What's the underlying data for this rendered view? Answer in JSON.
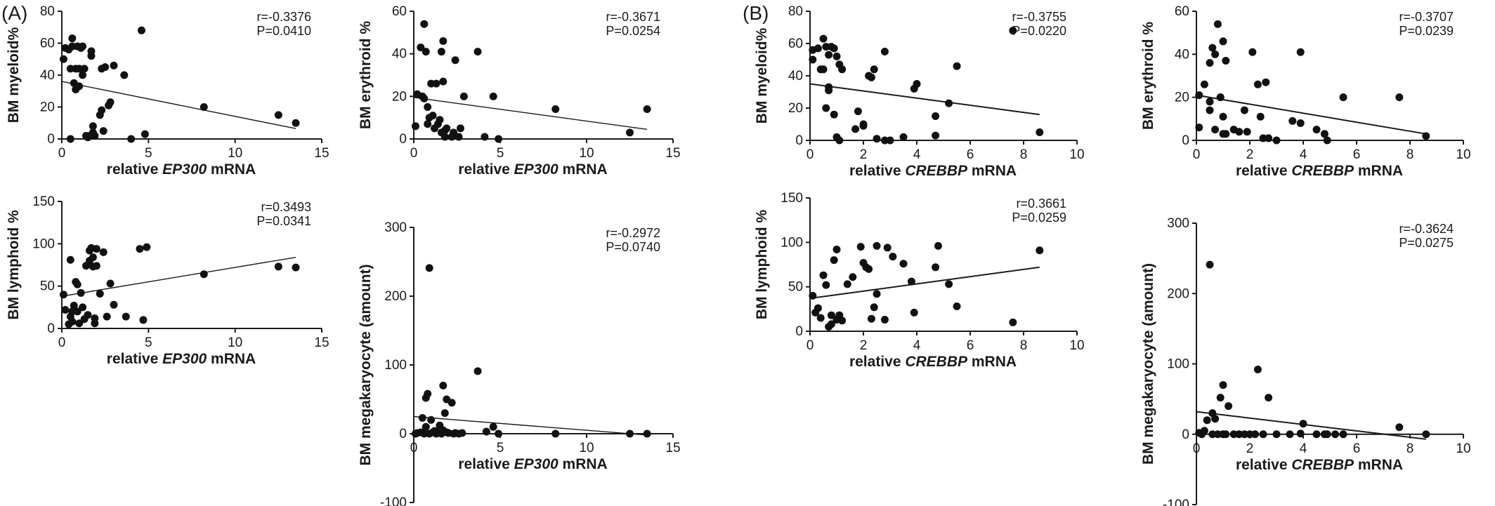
{
  "panel_labels": [
    "(A)",
    "(B)"
  ],
  "chart_data": [
    {
      "type": "scatter",
      "panel": "(A)",
      "ylabel": "BM myeloid%",
      "xlabel_prefix": "relative ",
      "xlabel_gene": "EP300",
      "xlabel_suffix": " mRNA",
      "xlim": [
        0,
        15
      ],
      "xticks": [
        0,
        5,
        10,
        15
      ],
      "ylim": [
        0,
        80
      ],
      "yticks": [
        0,
        20,
        40,
        60,
        80
      ],
      "r": "r=-0.3376",
      "p": "P=0.0410",
      "regression": {
        "x": [
          0,
          13.5
        ],
        "y": [
          36,
          6.5
        ]
      },
      "points": [
        [
          0.1,
          50
        ],
        [
          0.2,
          57
        ],
        [
          0.4,
          56
        ],
        [
          0.5,
          44
        ],
        [
          0.6,
          58
        ],
        [
          0.6,
          63
        ],
        [
          0.7,
          35
        ],
        [
          0.8,
          44
        ],
        [
          0.8,
          31
        ],
        [
          0.9,
          58
        ],
        [
          1.0,
          33
        ],
        [
          1.0,
          44
        ],
        [
          1.1,
          57
        ],
        [
          1.2,
          40
        ],
        [
          1.2,
          58
        ],
        [
          1.3,
          44
        ],
        [
          1.4,
          2
        ],
        [
          1.5,
          1
        ],
        [
          1.6,
          2
        ],
        [
          1.7,
          55
        ],
        [
          1.7,
          52
        ],
        [
          1.8,
          8
        ],
        [
          1.8,
          4
        ],
        [
          1.9,
          2
        ],
        [
          2.2,
          15
        ],
        [
          2.3,
          18
        ],
        [
          2.3,
          44
        ],
        [
          2.4,
          5
        ],
        [
          2.5,
          45
        ],
        [
          2.7,
          21
        ],
        [
          2.8,
          23
        ],
        [
          3.0,
          46
        ],
        [
          3.6,
          40
        ],
        [
          4.0,
          0
        ],
        [
          4.6,
          68
        ],
        [
          4.8,
          3
        ],
        [
          8.2,
          20
        ],
        [
          12.5,
          15
        ],
        [
          13.5,
          10
        ],
        [
          0.5,
          0
        ]
      ]
    },
    {
      "type": "scatter",
      "panel": "(A)",
      "ylabel": "BM erythroid %",
      "xlabel_prefix": "relative ",
      "xlabel_gene": "EP300",
      "xlabel_suffix": " mRNA",
      "xlim": [
        0,
        15
      ],
      "xticks": [
        0,
        5,
        10,
        15
      ],
      "ylim": [
        0,
        60
      ],
      "yticks": [
        0,
        20,
        40,
        60
      ],
      "r": "r=-0.3671",
      "p": "P=0.0254",
      "regression": {
        "x": [
          0,
          13.5
        ],
        "y": [
          19.5,
          4.5
        ]
      },
      "points": [
        [
          0.1,
          6
        ],
        [
          0.2,
          21
        ],
        [
          0.4,
          43
        ],
        [
          0.5,
          20
        ],
        [
          0.6,
          19
        ],
        [
          0.6,
          54
        ],
        [
          0.7,
          41
        ],
        [
          0.8,
          7
        ],
        [
          0.8,
          15
        ],
        [
          0.9,
          10
        ],
        [
          1.0,
          26
        ],
        [
          1.1,
          11
        ],
        [
          1.2,
          5
        ],
        [
          1.3,
          26
        ],
        [
          1.4,
          7
        ],
        [
          1.5,
          9
        ],
        [
          1.6,
          3
        ],
        [
          1.6,
          41
        ],
        [
          1.7,
          46
        ],
        [
          1.7,
          27
        ],
        [
          1.8,
          4
        ],
        [
          1.9,
          5
        ],
        [
          2.2,
          1
        ],
        [
          2.3,
          3
        ],
        [
          2.4,
          37
        ],
        [
          2.6,
          1
        ],
        [
          2.7,
          5
        ],
        [
          2.9,
          20
        ],
        [
          3.7,
          41
        ],
        [
          4.1,
          1
        ],
        [
          4.6,
          20
        ],
        [
          4.9,
          0
        ],
        [
          8.2,
          14
        ],
        [
          12.5,
          3
        ],
        [
          13.5,
          14
        ],
        [
          1.8,
          1
        ]
      ]
    },
    {
      "type": "scatter",
      "panel": "(B)",
      "ylabel": "BM myeloid%",
      "xlabel_prefix": "relative ",
      "xlabel_gene": "CREBBP",
      "xlabel_suffix": " mRNA",
      "xlim": [
        0,
        10
      ],
      "xticks": [
        0,
        2,
        4,
        6,
        8,
        10
      ],
      "ylim": [
        0,
        80
      ],
      "yticks": [
        0,
        20,
        40,
        60,
        80
      ],
      "r": "r=-0.3755",
      "p": "P=0.0220",
      "regression": {
        "x": [
          0,
          8.6
        ],
        "y": [
          35,
          16
        ]
      },
      "points": [
        [
          0.1,
          50
        ],
        [
          0.1,
          56
        ],
        [
          0.3,
          57
        ],
        [
          0.4,
          44
        ],
        [
          0.5,
          63
        ],
        [
          0.5,
          44
        ],
        [
          0.6,
          58
        ],
        [
          0.6,
          20
        ],
        [
          0.7,
          53
        ],
        [
          0.7,
          33
        ],
        [
          0.7,
          31
        ],
        [
          0.8,
          58
        ],
        [
          0.9,
          16
        ],
        [
          0.9,
          57
        ],
        [
          1.0,
          52
        ],
        [
          1.0,
          2
        ],
        [
          1.1,
          47
        ],
        [
          1.1,
          0
        ],
        [
          1.2,
          44
        ],
        [
          1.7,
          7
        ],
        [
          1.8,
          18
        ],
        [
          2.0,
          9
        ],
        [
          2.0,
          10
        ],
        [
          2.2,
          40
        ],
        [
          2.3,
          39
        ],
        [
          2.4,
          44
        ],
        [
          2.5,
          1
        ],
        [
          2.8,
          0
        ],
        [
          2.8,
          55
        ],
        [
          3.0,
          0
        ],
        [
          3.5,
          2
        ],
        [
          3.9,
          32
        ],
        [
          4.0,
          35
        ],
        [
          4.7,
          3
        ],
        [
          4.7,
          15
        ],
        [
          5.2,
          23
        ],
        [
          5.5,
          46
        ],
        [
          7.6,
          68
        ],
        [
          8.6,
          5
        ]
      ]
    },
    {
      "type": "scatter",
      "panel": "(B)",
      "ylabel": "BM erythroid %",
      "xlabel_prefix": "relative ",
      "xlabel_gene": "CREBBP",
      "xlabel_suffix": " mRNA",
      "xlim": [
        0,
        10
      ],
      "xticks": [
        0,
        2,
        4,
        6,
        8,
        10
      ],
      "ylim": [
        0,
        60
      ],
      "yticks": [
        0,
        20,
        40,
        60
      ],
      "r": "r=-0.3707",
      "p": "P=0.0239",
      "regression": {
        "x": [
          0,
          8.6
        ],
        "y": [
          21,
          3
        ]
      },
      "points": [
        [
          0.1,
          21
        ],
        [
          0.1,
          6
        ],
        [
          0.3,
          26
        ],
        [
          0.5,
          18
        ],
        [
          0.5,
          36
        ],
        [
          0.5,
          14
        ],
        [
          0.6,
          43
        ],
        [
          0.7,
          40
        ],
        [
          0.7,
          5
        ],
        [
          0.8,
          54
        ],
        [
          0.9,
          20
        ],
        [
          0.9,
          20
        ],
        [
          1.0,
          46
        ],
        [
          1.0,
          3
        ],
        [
          1.0,
          11
        ],
        [
          1.1,
          37
        ],
        [
          1.1,
          3
        ],
        [
          1.4,
          5
        ],
        [
          1.6,
          4
        ],
        [
          1.8,
          14
        ],
        [
          1.9,
          4
        ],
        [
          2.1,
          41
        ],
        [
          2.3,
          26
        ],
        [
          2.4,
          11
        ],
        [
          2.5,
          1
        ],
        [
          2.6,
          27
        ],
        [
          2.7,
          1
        ],
        [
          3.0,
          0
        ],
        [
          3.6,
          9
        ],
        [
          3.9,
          41
        ],
        [
          3.9,
          8
        ],
        [
          4.5,
          5
        ],
        [
          4.8,
          3
        ],
        [
          4.9,
          0
        ],
        [
          5.5,
          20
        ],
        [
          7.6,
          20
        ],
        [
          8.6,
          2
        ]
      ]
    },
    {
      "type": "scatter",
      "panel": "(A)",
      "ylabel": "BM lymphoid %",
      "xlabel_prefix": "relative ",
      "xlabel_gene": "EP300",
      "xlabel_suffix": " mRNA",
      "xlim": [
        0,
        15
      ],
      "xticks": [
        0,
        5,
        10,
        15
      ],
      "ylim": [
        0,
        150
      ],
      "yticks": [
        0,
        50,
        100,
        150
      ],
      "r": "r=0.3493",
      "p": "P=0.0341",
      "regression": {
        "x": [
          0,
          13.5
        ],
        "y": [
          38,
          84
        ]
      },
      "points": [
        [
          0.1,
          40
        ],
        [
          0.2,
          22
        ],
        [
          0.4,
          5
        ],
        [
          0.5,
          14
        ],
        [
          0.5,
          81
        ],
        [
          0.6,
          8
        ],
        [
          0.6,
          20
        ],
        [
          0.7,
          27
        ],
        [
          0.8,
          55
        ],
        [
          0.9,
          52
        ],
        [
          0.9,
          20
        ],
        [
          1.0,
          6
        ],
        [
          1.1,
          42
        ],
        [
          1.2,
          25
        ],
        [
          1.3,
          11
        ],
        [
          1.4,
          74
        ],
        [
          1.5,
          16
        ],
        [
          1.6,
          80
        ],
        [
          1.6,
          92
        ],
        [
          1.7,
          95
        ],
        [
          1.8,
          84
        ],
        [
          1.8,
          73
        ],
        [
          1.9,
          6
        ],
        [
          1.9,
          12
        ],
        [
          2.0,
          94
        ],
        [
          2.0,
          74
        ],
        [
          2.2,
          41
        ],
        [
          2.4,
          90
        ],
        [
          2.6,
          14
        ],
        [
          2.8,
          53
        ],
        [
          3.0,
          28
        ],
        [
          3.7,
          14
        ],
        [
          4.5,
          94
        ],
        [
          4.7,
          10
        ],
        [
          4.9,
          96
        ],
        [
          8.2,
          64
        ],
        [
          12.5,
          73
        ],
        [
          13.5,
          72
        ]
      ]
    },
    {
      "type": "scatter",
      "panel": "(A)",
      "ylabel": "BM megakaryocyte (amount)",
      "xlabel_prefix": "relative ",
      "xlabel_gene": "EP300",
      "xlabel_suffix": " mRNA",
      "xlim": [
        0,
        15
      ],
      "xticks": [
        0,
        5,
        10,
        15
      ],
      "ylim": [
        -100,
        300
      ],
      "yticks": [
        -100,
        0,
        100,
        200,
        300
      ],
      "r": "r=-0.2972",
      "p": "P=0.0740",
      "regression": {
        "x": [
          0,
          13.5
        ],
        "y": [
          25,
          -2
        ]
      },
      "points": [
        [
          0.1,
          0
        ],
        [
          0.2,
          1
        ],
        [
          0.4,
          2
        ],
        [
          0.5,
          23
        ],
        [
          0.6,
          0
        ],
        [
          0.7,
          10
        ],
        [
          0.7,
          52
        ],
        [
          0.8,
          58
        ],
        [
          0.9,
          0
        ],
        [
          0.9,
          241
        ],
        [
          1.0,
          20
        ],
        [
          1.1,
          2
        ],
        [
          1.2,
          4
        ],
        [
          1.3,
          0
        ],
        [
          1.4,
          2
        ],
        [
          1.5,
          12
        ],
        [
          1.6,
          0
        ],
        [
          1.7,
          5
        ],
        [
          1.7,
          70
        ],
        [
          1.8,
          30
        ],
        [
          1.9,
          50
        ],
        [
          1.9,
          2
        ],
        [
          2.0,
          1
        ],
        [
          2.2,
          45
        ],
        [
          2.3,
          0
        ],
        [
          2.4,
          1
        ],
        [
          2.6,
          0
        ],
        [
          2.8,
          1
        ],
        [
          3.7,
          91
        ],
        [
          4.2,
          3
        ],
        [
          4.6,
          10
        ],
        [
          4.9,
          0
        ],
        [
          8.2,
          0
        ],
        [
          12.5,
          0
        ],
        [
          13.5,
          0
        ]
      ]
    },
    {
      "type": "scatter",
      "panel": "(B)",
      "ylabel": "BM lymphoid %",
      "xlabel_prefix": "relative ",
      "xlabel_gene": "CREBBP",
      "xlabel_suffix": " mRNA",
      "xlim": [
        0,
        10
      ],
      "xticks": [
        0,
        2,
        4,
        6,
        8,
        10
      ],
      "ylim": [
        0,
        150
      ],
      "yticks": [
        0,
        50,
        100,
        150
      ],
      "r": "r=0.3661",
      "p": "P=0.0259",
      "regression": {
        "x": [
          0,
          8.6
        ],
        "y": [
          37,
          72
        ]
      },
      "points": [
        [
          0.1,
          40
        ],
        [
          0.2,
          21
        ],
        [
          0.3,
          26
        ],
        [
          0.4,
          15
        ],
        [
          0.5,
          63
        ],
        [
          0.6,
          52
        ],
        [
          0.7,
          5
        ],
        [
          0.8,
          8
        ],
        [
          0.8,
          18
        ],
        [
          0.9,
          80
        ],
        [
          1.0,
          92
        ],
        [
          1.0,
          13
        ],
        [
          1.1,
          18
        ],
        [
          1.2,
          12
        ],
        [
          1.4,
          53
        ],
        [
          1.6,
          61
        ],
        [
          1.9,
          95
        ],
        [
          2.0,
          77
        ],
        [
          2.1,
          72
        ],
        [
          2.2,
          70
        ],
        [
          2.3,
          14
        ],
        [
          2.4,
          27
        ],
        [
          2.5,
          42
        ],
        [
          2.5,
          96
        ],
        [
          2.8,
          13
        ],
        [
          2.9,
          94
        ],
        [
          3.1,
          84
        ],
        [
          3.5,
          76
        ],
        [
          3.8,
          56
        ],
        [
          3.9,
          21
        ],
        [
          4.7,
          72
        ],
        [
          4.8,
          96
        ],
        [
          5.2,
          53
        ],
        [
          5.5,
          28
        ],
        [
          7.6,
          10
        ],
        [
          8.6,
          91
        ]
      ]
    },
    {
      "type": "scatter",
      "panel": "(B)",
      "ylabel": "BM megakaryocyte (amount)",
      "xlabel_prefix": "relative ",
      "xlabel_gene": "CREBBP",
      "xlabel_suffix": " mRNA",
      "xlim": [
        0,
        10
      ],
      "xticks": [
        0,
        2,
        4,
        6,
        8,
        10
      ],
      "ylim": [
        -100,
        300
      ],
      "yticks": [
        -100,
        0,
        100,
        200,
        300
      ],
      "r": "r=-0.3624",
      "p": "P=0.0275",
      "regression": {
        "x": [
          0,
          8.6
        ],
        "y": [
          32,
          -7
        ]
      },
      "points": [
        [
          0.1,
          2
        ],
        [
          0.2,
          0
        ],
        [
          0.3,
          5
        ],
        [
          0.4,
          20
        ],
        [
          0.5,
          241
        ],
        [
          0.6,
          0
        ],
        [
          0.6,
          30
        ],
        [
          0.7,
          22
        ],
        [
          0.8,
          0
        ],
        [
          0.9,
          52
        ],
        [
          1.0,
          70
        ],
        [
          1.0,
          0
        ],
        [
          1.1,
          0
        ],
        [
          1.2,
          40
        ],
        [
          1.4,
          0
        ],
        [
          1.6,
          0
        ],
        [
          1.8,
          0
        ],
        [
          2.0,
          0
        ],
        [
          2.2,
          0
        ],
        [
          2.3,
          92
        ],
        [
          2.5,
          0
        ],
        [
          2.7,
          52
        ],
        [
          3.0,
          0
        ],
        [
          3.5,
          0
        ],
        [
          3.9,
          1
        ],
        [
          4.0,
          15
        ],
        [
          4.5,
          0
        ],
        [
          4.8,
          0
        ],
        [
          4.9,
          0
        ],
        [
          5.2,
          0
        ],
        [
          5.5,
          0
        ],
        [
          7.6,
          10
        ],
        [
          8.6,
          0
        ]
      ]
    }
  ]
}
